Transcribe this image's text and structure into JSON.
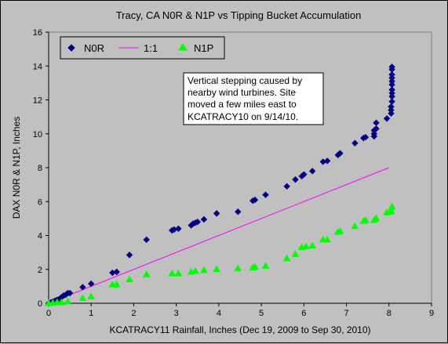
{
  "chart_data": {
    "type": "scatter",
    "title": "Tracy, CA N0R & N1P vs Tipping Bucket Accumulation",
    "xlabel": "KCATRACY11 Rainfall, Inches (Dec 19, 2009 to Sep 30, 2010)",
    "ylabel": "DAX N0R & N1P, Inches",
    "xlim": [
      0,
      9
    ],
    "ylim": [
      0,
      16
    ],
    "xticks": [
      "0",
      "1",
      "2",
      "3",
      "4",
      "5",
      "6",
      "7",
      "8",
      "9"
    ],
    "yticks": [
      "0",
      "2",
      "4",
      "6",
      "8",
      "10",
      "12",
      "14",
      "16"
    ],
    "grid": false,
    "legend_position": "top-left",
    "annotation": [
      "Vertical stepping caused by",
      "nearby wind turbines.  Site",
      "moved a few miles east to",
      "KCATRACY10 on 9/14/10."
    ],
    "series": [
      {
        "name": "N0R",
        "color": "#000080",
        "marker": "diamond",
        "points": [
          [
            0.0,
            0.0
          ],
          [
            0.05,
            0.05
          ],
          [
            0.1,
            0.1
          ],
          [
            0.15,
            0.15
          ],
          [
            0.2,
            0.2
          ],
          [
            0.25,
            0.25
          ],
          [
            0.3,
            0.35
          ],
          [
            0.35,
            0.45
          ],
          [
            0.4,
            0.5
          ],
          [
            0.45,
            0.6
          ],
          [
            0.5,
            0.6
          ],
          [
            0.8,
            0.95
          ],
          [
            1.0,
            1.15
          ],
          [
            1.5,
            1.8
          ],
          [
            1.6,
            1.85
          ],
          [
            1.9,
            2.85
          ],
          [
            2.3,
            3.75
          ],
          [
            2.9,
            4.3
          ],
          [
            2.95,
            4.35
          ],
          [
            3.05,
            4.4
          ],
          [
            3.35,
            4.6
          ],
          [
            3.4,
            4.7
          ],
          [
            3.45,
            4.75
          ],
          [
            3.5,
            4.8
          ],
          [
            3.65,
            4.95
          ],
          [
            3.95,
            5.3
          ],
          [
            4.45,
            5.4
          ],
          [
            4.8,
            6.05
          ],
          [
            4.85,
            6.1
          ],
          [
            5.1,
            6.4
          ],
          [
            5.6,
            6.9
          ],
          [
            5.8,
            7.3
          ],
          [
            5.95,
            7.5
          ],
          [
            6.0,
            7.6
          ],
          [
            6.2,
            7.8
          ],
          [
            6.45,
            8.35
          ],
          [
            6.55,
            8.4
          ],
          [
            6.8,
            8.75
          ],
          [
            6.85,
            8.85
          ],
          [
            7.2,
            9.45
          ],
          [
            7.4,
            9.75
          ],
          [
            7.45,
            9.8
          ],
          [
            7.65,
            9.85
          ],
          [
            7.65,
            10.0
          ],
          [
            7.65,
            10.2
          ],
          [
            7.7,
            10.3
          ],
          [
            7.7,
            10.65
          ],
          [
            7.95,
            10.9
          ],
          [
            8.05,
            11.2
          ],
          [
            8.05,
            11.4
          ],
          [
            8.05,
            11.6
          ],
          [
            8.07,
            11.9
          ],
          [
            8.07,
            12.2
          ],
          [
            8.07,
            12.4
          ],
          [
            8.07,
            12.6
          ],
          [
            8.07,
            12.9
          ],
          [
            8.07,
            13.1
          ],
          [
            8.07,
            13.3
          ],
          [
            8.07,
            13.5
          ],
          [
            8.07,
            13.8
          ],
          [
            8.07,
            13.95
          ]
        ]
      },
      {
        "name": "1:1",
        "color": "#ff00ff",
        "line": [
          [
            0,
            0
          ],
          [
            8.0,
            8.0
          ]
        ]
      },
      {
        "name": "N1P",
        "color": "#00ff00",
        "marker": "triangle",
        "points": [
          [
            0.0,
            0.0
          ],
          [
            0.1,
            0.02
          ],
          [
            0.2,
            0.05
          ],
          [
            0.3,
            0.05
          ],
          [
            0.45,
            0.1
          ],
          [
            0.8,
            0.3
          ],
          [
            1.0,
            0.4
          ],
          [
            1.5,
            1.1
          ],
          [
            1.6,
            1.1
          ],
          [
            1.9,
            1.4
          ],
          [
            2.3,
            1.7
          ],
          [
            2.9,
            1.75
          ],
          [
            3.05,
            1.75
          ],
          [
            3.35,
            1.85
          ],
          [
            3.45,
            1.9
          ],
          [
            3.65,
            1.95
          ],
          [
            3.95,
            2.0
          ],
          [
            4.45,
            2.05
          ],
          [
            4.8,
            2.1
          ],
          [
            4.85,
            2.15
          ],
          [
            5.1,
            2.2
          ],
          [
            5.6,
            2.65
          ],
          [
            5.8,
            2.9
          ],
          [
            5.95,
            3.3
          ],
          [
            6.05,
            3.35
          ],
          [
            6.2,
            3.4
          ],
          [
            6.45,
            3.75
          ],
          [
            6.55,
            3.75
          ],
          [
            6.8,
            4.2
          ],
          [
            6.85,
            4.25
          ],
          [
            7.2,
            4.55
          ],
          [
            7.4,
            4.85
          ],
          [
            7.45,
            4.9
          ],
          [
            7.65,
            4.9
          ],
          [
            7.7,
            5.0
          ],
          [
            7.95,
            5.35
          ],
          [
            8.05,
            5.4
          ],
          [
            8.05,
            5.5
          ],
          [
            8.07,
            5.7
          ]
        ]
      }
    ]
  }
}
